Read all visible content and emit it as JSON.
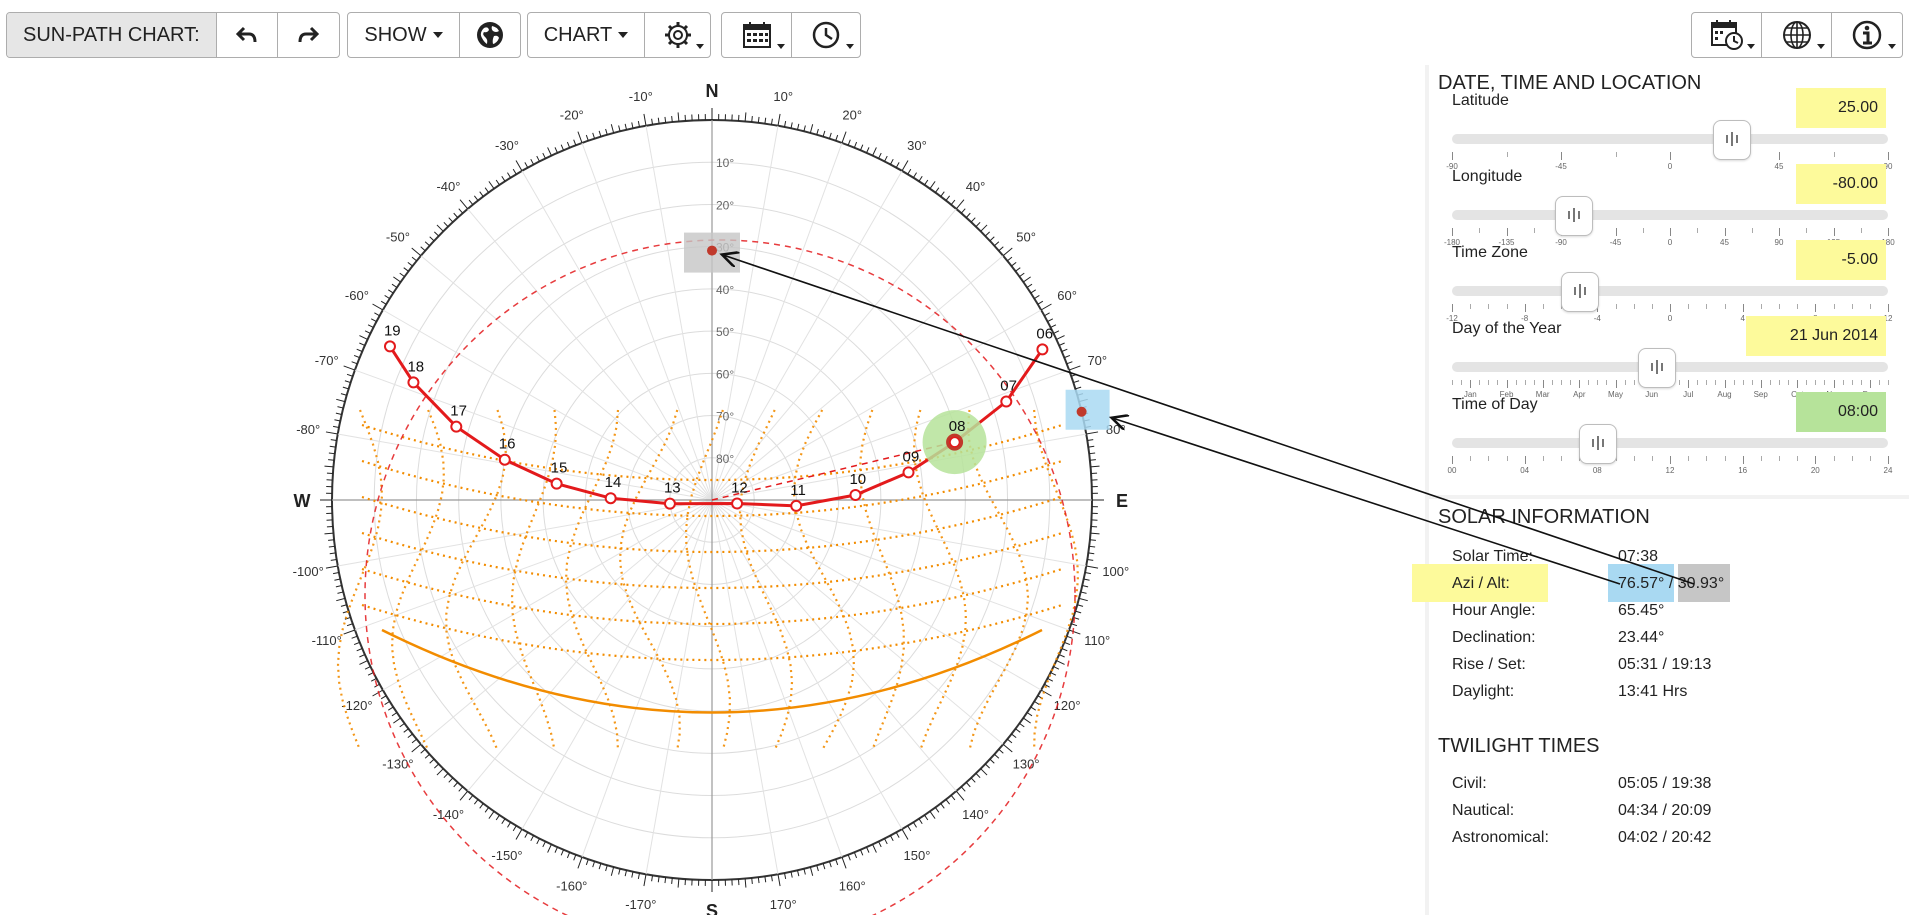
{
  "toolbar": {
    "title": "SUN-PATH CHART:",
    "show_label": "SHOW",
    "chart_label": "CHART"
  },
  "colors": {
    "highlight_yellow": "#fdfa9b",
    "highlight_green": "#b6e39a",
    "highlight_blue": "#a9d9f2",
    "highlight_gray": "#c6c6c6",
    "sun_path": "#e31a1c",
    "annual_grid": "#f28c00"
  },
  "chart": {
    "north": "N",
    "south": "S",
    "east": "E",
    "west": "W",
    "azimuth_labels": [
      {
        "az": -10,
        "t": "-10°"
      },
      {
        "az": 10,
        "t": "10°"
      },
      {
        "az": -20,
        "t": "-20°"
      },
      {
        "az": 20,
        "t": "20°"
      },
      {
        "az": -30,
        "t": "-30°"
      },
      {
        "az": 30,
        "t": "30°"
      },
      {
        "az": -40,
        "t": "-40°"
      },
      {
        "az": 40,
        "t": "40°"
      },
      {
        "az": -50,
        "t": "-50°"
      },
      {
        "az": 50,
        "t": "50°"
      },
      {
        "az": -60,
        "t": "-60°"
      },
      {
        "az": 60,
        "t": "60°"
      },
      {
        "az": -70,
        "t": "-70°"
      },
      {
        "az": 70,
        "t": "70°"
      },
      {
        "az": -80,
        "t": "-80°"
      },
      {
        "az": 80,
        "t": "80°"
      },
      {
        "az": -100,
        "t": "-100°"
      },
      {
        "az": 100,
        "t": "100°"
      },
      {
        "az": -110,
        "t": "-110°"
      },
      {
        "az": 110,
        "t": "110°"
      },
      {
        "az": -120,
        "t": "-120°"
      },
      {
        "az": 120,
        "t": "120°"
      },
      {
        "az": -130,
        "t": "-130°"
      },
      {
        "az": 130,
        "t": "130°"
      },
      {
        "az": -140,
        "t": "-140°"
      },
      {
        "az": 140,
        "t": "140°"
      },
      {
        "az": -150,
        "t": "-150°"
      },
      {
        "az": 150,
        "t": "150°"
      },
      {
        "az": -160,
        "t": "-160°"
      },
      {
        "az": 160,
        "t": "160°"
      },
      {
        "az": -170,
        "t": "-170°"
      },
      {
        "az": 170,
        "t": "170°"
      }
    ],
    "altitude_labels": [
      "10°",
      "20°",
      "30°",
      "40°",
      "50°",
      "60°",
      "70°",
      "80°"
    ],
    "sun_path_today": [
      {
        "h": "06",
        "az": 65.5,
        "alt": 4
      },
      {
        "h": "07",
        "az": 71.5,
        "alt": 16.5
      },
      {
        "h": "08",
        "az": 76.6,
        "alt": 30.9
      },
      {
        "h": "09",
        "az": 82,
        "alt": 43
      },
      {
        "h": "10",
        "az": 88,
        "alt": 56
      },
      {
        "h": "11",
        "az": 94,
        "alt": 70
      },
      {
        "h": "12",
        "az": 98,
        "alt": 84
      },
      {
        "h": "13",
        "az": -95,
        "alt": 80
      },
      {
        "h": "14",
        "az": -89,
        "alt": 66
      },
      {
        "h": "15",
        "az": -84,
        "alt": 53
      },
      {
        "h": "16",
        "az": -79,
        "alt": 40
      },
      {
        "h": "17",
        "az": -74,
        "alt": 27
      },
      {
        "h": "18",
        "az": -68.5,
        "alt": 14
      },
      {
        "h": "19",
        "az": -64.5,
        "alt": 5.5
      }
    ],
    "current_sun": {
      "az": 76.57,
      "alt": 30.93
    }
  },
  "panel": {
    "dtl_title": "DATE, TIME AND LOCATION",
    "sliders": [
      {
        "label": "Latitude",
        "value": "25.00",
        "pos": 0.639,
        "hl": "yellow",
        "ticks": [
          {
            "p": 0,
            "t": "-90"
          },
          {
            "p": 0.25,
            "t": "-45"
          },
          {
            "p": 0.5,
            "t": "0"
          },
          {
            "p": 0.75,
            "t": "45"
          },
          {
            "p": 1,
            "t": "90"
          }
        ],
        "minor": 8
      },
      {
        "label": "Longitude",
        "value": "-80.00",
        "pos": 0.278,
        "hl": "yellow",
        "ticks": [
          {
            "p": 0,
            "t": "-180"
          },
          {
            "p": 0.125,
            "t": "-135"
          },
          {
            "p": 0.25,
            "t": "-90"
          },
          {
            "p": 0.375,
            "t": "-45"
          },
          {
            "p": 0.5,
            "t": "0"
          },
          {
            "p": 0.625,
            "t": "45"
          },
          {
            "p": 0.75,
            "t": "90"
          },
          {
            "p": 0.875,
            "t": "135"
          },
          {
            "p": 1,
            "t": "180"
          }
        ],
        "minor": 16
      },
      {
        "label": "Time Zone",
        "value": "-5.00",
        "pos": 0.292,
        "hl": "yellow",
        "ticks": [
          {
            "p": 0,
            "t": "-12"
          },
          {
            "p": 0.1667,
            "t": "-8"
          },
          {
            "p": 0.3333,
            "t": "-4"
          },
          {
            "p": 0.5,
            "t": "0"
          },
          {
            "p": 0.6667,
            "t": "4"
          },
          {
            "p": 0.8333,
            "t": "8"
          },
          {
            "p": 1,
            "t": "12"
          }
        ],
        "minor": 24
      },
      {
        "label": "Day of the Year",
        "value": "21 Jun 2014",
        "pos": 0.469,
        "hl": "yellow",
        "ticks": [
          {
            "p": 0.042,
            "t": "Jan"
          },
          {
            "p": 0.125,
            "t": "Feb"
          },
          {
            "p": 0.208,
            "t": "Mar"
          },
          {
            "p": 0.292,
            "t": "Apr"
          },
          {
            "p": 0.375,
            "t": "May"
          },
          {
            "p": 0.458,
            "t": "Jun"
          },
          {
            "p": 0.542,
            "t": "Jul"
          },
          {
            "p": 0.625,
            "t": "Aug"
          },
          {
            "p": 0.708,
            "t": "Sep"
          },
          {
            "p": 0.792,
            "t": "Oct"
          },
          {
            "p": 0.875,
            "t": "Nov"
          },
          {
            "p": 0.958,
            "t": "Dec"
          }
        ],
        "minor": 48
      },
      {
        "label": "Time of Day",
        "value": "08:00",
        "pos": 0.333,
        "hl": "green",
        "ticks": [
          {
            "p": 0,
            "t": "00"
          },
          {
            "p": 0.1667,
            "t": "04"
          },
          {
            "p": 0.3333,
            "t": "08"
          },
          {
            "p": 0.5,
            "t": "12"
          },
          {
            "p": 0.6667,
            "t": "16"
          },
          {
            "p": 0.8333,
            "t": "20"
          },
          {
            "p": 1,
            "t": "24"
          }
        ],
        "minor": 24
      }
    ],
    "solar_title": "SOLAR INFORMATION",
    "solar": {
      "solar_time_k": "Solar Time:",
      "solar_time_v": "07:38",
      "azialt_k": "Azi / Alt:",
      "azi_v": "76.57°",
      "sep": " / ",
      "alt_v": "30.93°",
      "hour_angle_k": "Hour Angle:",
      "hour_angle_v": "65.45°",
      "declination_k": "Declination:",
      "declination_v": "23.44°",
      "riseset_k": "Rise / Set:",
      "riseset_v": "05:31 / 19:13",
      "daylight_k": "Daylight:",
      "daylight_v": "13:41 Hrs"
    },
    "twilight_title": "TWILIGHT TIMES",
    "twilight": {
      "civil_k": "Civil:",
      "civil_v": "05:05 / 19:38",
      "nautical_k": "Nautical:",
      "nautical_v": "04:34 / 20:09",
      "astro_k": "Astronomical:",
      "astro_v": "04:02 / 20:42"
    }
  }
}
